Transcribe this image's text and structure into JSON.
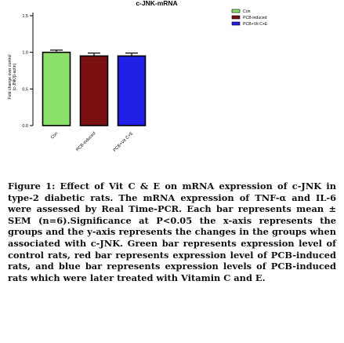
{
  "figure": {
    "chart_data": {
      "type": "bar",
      "title": "c-JNK-mRNA",
      "ylabel_line1": "Fold change over control",
      "ylabel_line2": "(c-JNK/β-actin)",
      "categories": [
        "Con",
        "PCB-induced",
        "PCB+Vit C+E"
      ],
      "values": [
        1.0,
        0.95,
        0.95
      ],
      "errors": [
        0.03,
        0.04,
        0.04
      ],
      "colors": [
        "#8be06b",
        "#7a1010",
        "#1f1fe6"
      ],
      "yticks": [
        0.0,
        0.5,
        1.0,
        1.5
      ],
      "ylim": [
        0,
        1.5
      ],
      "legend": {
        "placement": "top-right",
        "entries": [
          "Con",
          "PCB-induced",
          "PCB+Vit C+E"
        ]
      },
      "grid": false
    }
  },
  "caption": {
    "label": "Figure 1:",
    "text": " Effect of Vit C & E on mRNA expression of c-JNK in type-2 diabetic rats. The mRNA expression of TNF-α and IL-6 were assessed by Real Time-PCR. Each bar represents mean ± SEM (n=6).Significance at P<0.05 the x-axis represents the groups and the y-axis represents the changes in the groups when associated with c-JNK. Green bar represents expression level of control rats, red bar represents expression level of PCB-induced rats, and blue bar represents expression levels of PCB-induced rats which were later treated with Vitamin C and E."
  }
}
